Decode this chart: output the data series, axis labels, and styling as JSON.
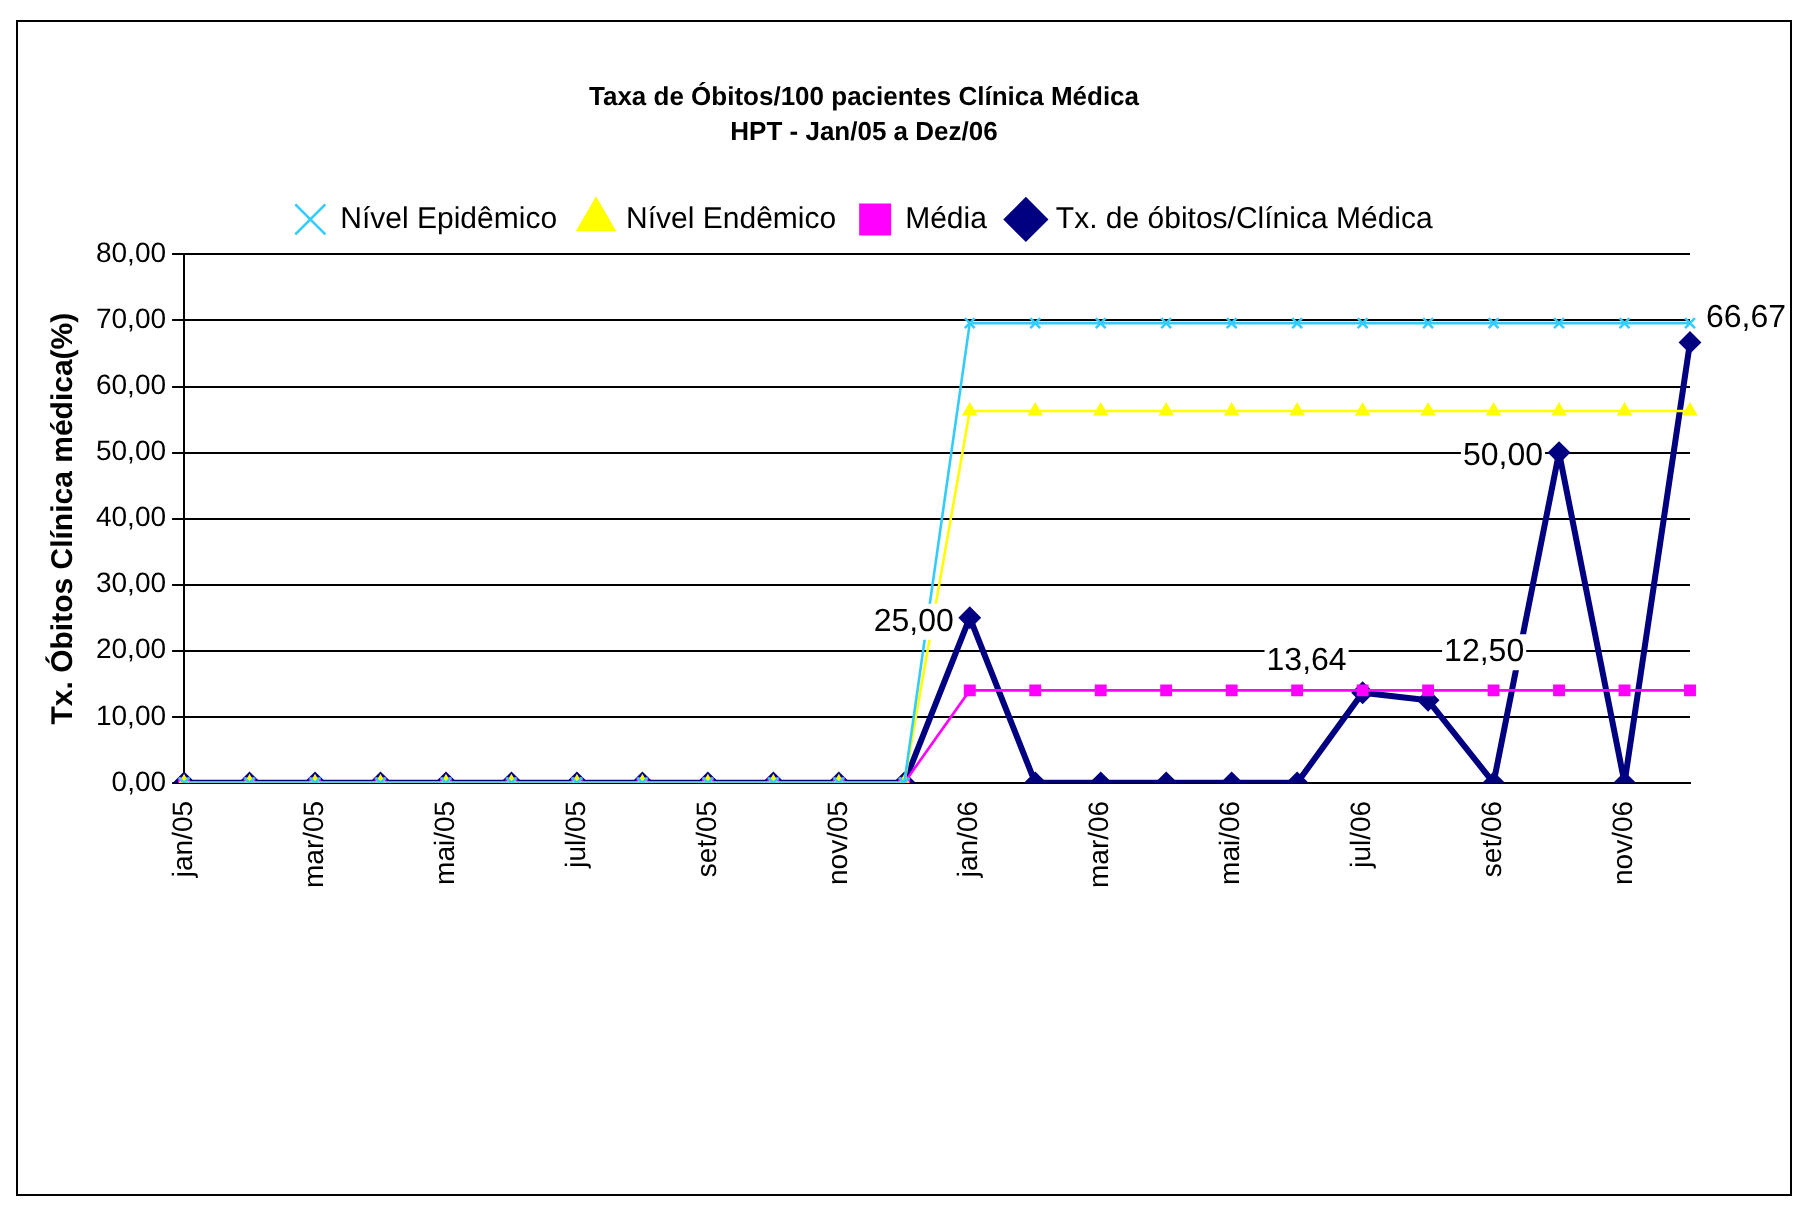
{
  "chart_data": {
    "type": "line",
    "title": "Taxa de Óbitos/100 pacientes Clínica Médica",
    "subtitle": "HPT - Jan/05 a Dez/06",
    "ylabel": "Tx. Óbitos Clínica médica(%)",
    "categories": [
      "jan/05",
      null,
      "mar/05",
      null,
      "mai/05",
      null,
      "jul/05",
      null,
      "set/05",
      null,
      "nov/05",
      null,
      "jan/06",
      null,
      "mar/06",
      null,
      "mai/06",
      null,
      "jul/06",
      null,
      "set/06",
      null,
      "nov/06",
      null
    ],
    "series": [
      {
        "name": "Nível Epidêmico",
        "color": "#33ccff",
        "marker": "cross",
        "values": [
          0,
          0,
          0,
          0,
          0,
          0,
          0,
          0,
          0,
          0,
          0,
          0,
          69.6,
          69.6,
          69.6,
          69.6,
          69.6,
          69.6,
          69.6,
          69.6,
          69.6,
          69.6,
          69.6,
          69.6
        ]
      },
      {
        "name": "Nível Endêmico",
        "color": "#ffff00",
        "marker": "triangle",
        "values": [
          0,
          0,
          0,
          0,
          0,
          0,
          0,
          0,
          0,
          0,
          0,
          0,
          56.3,
          56.3,
          56.3,
          56.3,
          56.3,
          56.3,
          56.3,
          56.3,
          56.3,
          56.3,
          56.3,
          56.3
        ]
      },
      {
        "name": "Média",
        "color": "#ff00ff",
        "marker": "square",
        "values": [
          0,
          0,
          0,
          0,
          0,
          0,
          0,
          0,
          0,
          0,
          0,
          0,
          14.0,
          14.0,
          14.0,
          14.0,
          14.0,
          14.0,
          14.0,
          14.0,
          14.0,
          14.0,
          14.0,
          14.0
        ]
      },
      {
        "name": "Tx. de óbitos/Clínica Médica",
        "color": "#000080",
        "marker": "diamond",
        "values": [
          0,
          0,
          0,
          0,
          0,
          0,
          0,
          0,
          0,
          0,
          0,
          0,
          25,
          0,
          0,
          0,
          0,
          0,
          13.64,
          12.5,
          0,
          50,
          0,
          66.67
        ],
        "value_labels": [
          null,
          null,
          null,
          null,
          null,
          null,
          null,
          null,
          null,
          null,
          null,
          null,
          "25,00",
          null,
          null,
          null,
          null,
          null,
          "13,64",
          "12,50",
          null,
          "50,00",
          null,
          "66,67"
        ]
      }
    ],
    "ylim": [
      0,
      80
    ],
    "yticks": [
      {
        "value": 0,
        "label": "0,00"
      },
      {
        "value": 10,
        "label": "10,00"
      },
      {
        "value": 20,
        "label": "20,00"
      },
      {
        "value": 30,
        "label": "30,00"
      },
      {
        "value": 40,
        "label": "40,00"
      },
      {
        "value": 50,
        "label": "50,00"
      },
      {
        "value": 60,
        "label": "60,00"
      },
      {
        "value": 70,
        "label": "70,00"
      },
      {
        "value": 80,
        "label": "80,00"
      }
    ],
    "grid": "y",
    "legend": "top",
    "line_style": "solid"
  }
}
